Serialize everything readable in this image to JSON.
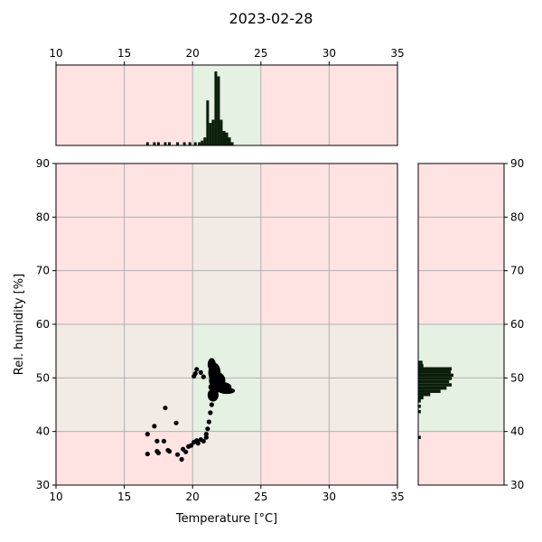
{
  "chart_data": {
    "type": "scatter",
    "title": "2023-02-28",
    "xlabel": "Temperature [°C]",
    "ylabel": "Rel. humidity [%]",
    "xlim": [
      10,
      35
    ],
    "ylim": [
      30,
      90
    ],
    "xticks": [
      10,
      15,
      20,
      25,
      30,
      35
    ],
    "yticks": [
      30,
      40,
      50,
      60,
      70,
      80,
      90
    ],
    "grid": true,
    "colors": {
      "red_zone": "#ffe3e3",
      "green_zone": "#e5f1e3",
      "overlap_zone": "#f2ebe5",
      "grid": "#b0b0b0",
      "marker": "#000000",
      "bar": "#0a1e0a"
    },
    "comfort_zone": {
      "x": [
        20,
        25
      ],
      "y": [
        40,
        60
      ]
    },
    "points": [
      [
        16.7,
        35.8
      ],
      [
        16.7,
        39.5
      ],
      [
        17.2,
        41.0
      ],
      [
        17.4,
        38.2
      ],
      [
        17.4,
        36.3
      ],
      [
        17.5,
        36.0
      ],
      [
        17.9,
        38.2
      ],
      [
        18.0,
        44.4
      ],
      [
        18.2,
        36.5
      ],
      [
        18.3,
        36.3
      ],
      [
        18.8,
        41.6
      ],
      [
        18.9,
        35.7
      ],
      [
        19.2,
        34.8
      ],
      [
        19.3,
        36.7
      ],
      [
        19.5,
        36.2
      ],
      [
        19.7,
        37.2
      ],
      [
        19.9,
        37.4
      ],
      [
        20.1,
        38.0
      ],
      [
        20.3,
        38.3
      ],
      [
        20.4,
        37.8
      ],
      [
        20.6,
        38.5
      ],
      [
        20.8,
        38.2
      ],
      [
        20.1,
        50.3
      ],
      [
        20.2,
        50.8
      ],
      [
        20.3,
        51.6
      ],
      [
        20.6,
        51.0
      ],
      [
        20.8,
        50.2
      ],
      [
        21.0,
        38.9
      ],
      [
        21.0,
        39.5
      ],
      [
        21.1,
        40.5
      ],
      [
        21.2,
        41.8
      ],
      [
        21.3,
        43.5
      ],
      [
        21.4,
        45.0
      ],
      [
        21.5,
        46.5
      ]
    ],
    "cluster": [
      {
        "cx": 21.4,
        "cy": 52.5,
        "rx": 0.3,
        "ry": 1.2
      },
      {
        "cx": 21.6,
        "cy": 51.0,
        "rx": 0.45,
        "ry": 1.8
      },
      {
        "cx": 21.8,
        "cy": 49.5,
        "rx": 0.6,
        "ry": 1.6
      },
      {
        "cx": 22.0,
        "cy": 48.3,
        "rx": 0.85,
        "ry": 1.0
      },
      {
        "cx": 22.5,
        "cy": 47.6,
        "rx": 0.6,
        "ry": 0.6
      },
      {
        "cx": 21.5,
        "cy": 46.8,
        "rx": 0.4,
        "ry": 1.2
      }
    ],
    "top_histogram": {
      "bins": [
        [
          16.6,
          0.02
        ],
        [
          17.1,
          0.02
        ],
        [
          17.4,
          0.02
        ],
        [
          17.9,
          0.02
        ],
        [
          18.2,
          0.02
        ],
        [
          18.8,
          0.02
        ],
        [
          19.3,
          0.02
        ],
        [
          19.7,
          0.02
        ],
        [
          20.1,
          0.02
        ],
        [
          20.4,
          0.02
        ],
        [
          20.6,
          0.03
        ],
        [
          20.8,
          0.05
        ],
        [
          21.0,
          0.28
        ],
        [
          21.2,
          0.14
        ],
        [
          21.4,
          0.16
        ],
        [
          21.6,
          0.46
        ],
        [
          21.8,
          0.43
        ],
        [
          22.0,
          0.16
        ],
        [
          22.2,
          0.09
        ],
        [
          22.4,
          0.08
        ],
        [
          22.6,
          0.05
        ],
        [
          22.8,
          0.02
        ]
      ],
      "bin_width": 0.2,
      "max": 0.5
    },
    "right_histogram": {
      "bins": [
        [
          38.6,
          0.03
        ],
        [
          43.4,
          0.03
        ],
        [
          44.4,
          0.03
        ],
        [
          45.4,
          0.03
        ],
        [
          46.0,
          0.06
        ],
        [
          46.6,
          0.14
        ],
        [
          47.2,
          0.26
        ],
        [
          47.8,
          0.33
        ],
        [
          48.4,
          0.39
        ],
        [
          49.0,
          0.36
        ],
        [
          49.6,
          0.39
        ],
        [
          50.2,
          0.41
        ],
        [
          50.8,
          0.38
        ],
        [
          51.4,
          0.39
        ],
        [
          52.0,
          0.06
        ],
        [
          52.6,
          0.05
        ]
      ],
      "bin_width": 0.6,
      "max": 1.0
    }
  }
}
